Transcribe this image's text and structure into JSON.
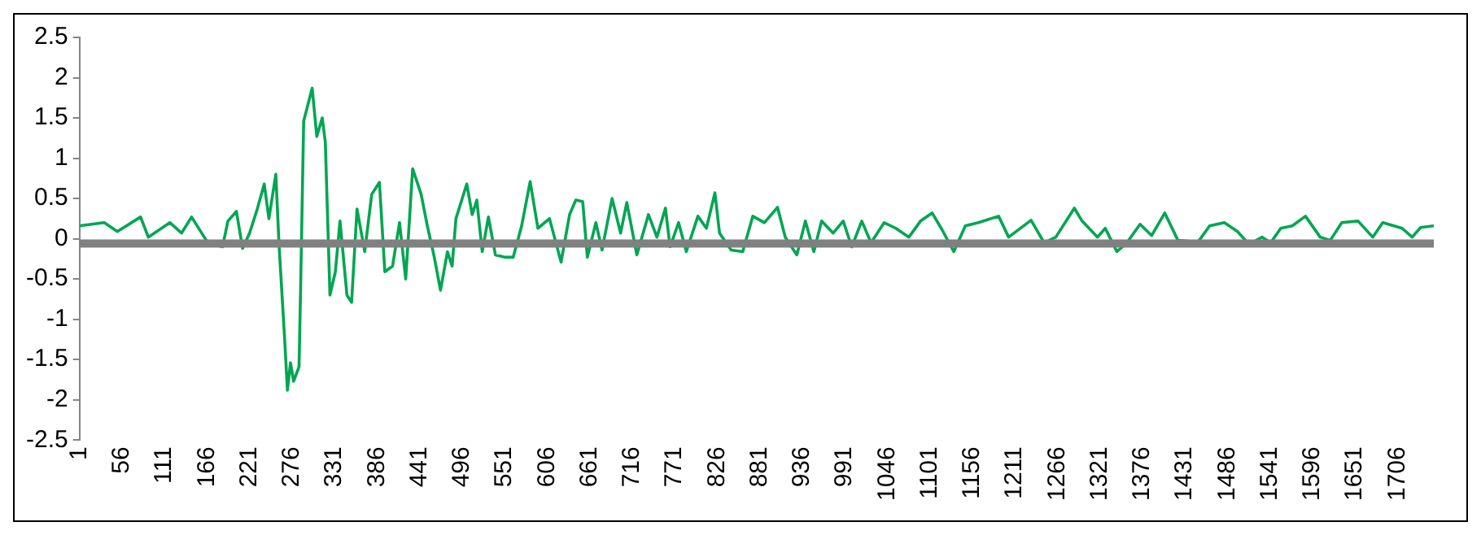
{
  "chart_data": {
    "type": "line",
    "grid": false,
    "legend": false,
    "marker": "none",
    "line_style": "solid",
    "x": [
      1,
      33,
      50,
      80,
      90,
      118,
      133,
      146,
      167,
      186,
      193,
      204,
      212,
      221,
      231,
      240,
      246,
      255,
      259,
      266,
      270,
      274,
      278,
      285,
      287,
      291,
      302,
      308,
      315,
      319,
      325,
      332,
      338,
      347,
      353,
      360,
      370,
      379,
      389,
      396,
      406,
      415,
      423,
      432,
      443,
      451,
      460,
      468,
      477,
      483,
      488,
      502,
      509,
      515,
      522,
      530,
      539,
      552,
      562,
      573,
      584,
      594,
      609,
      624,
      635,
      643,
      652,
      658,
      669,
      677,
      690,
      701,
      709,
      722,
      737,
      748,
      759,
      765,
      776,
      786,
      801,
      812,
      823,
      829,
      844,
      859,
      872,
      887,
      904,
      914,
      929,
      940,
      951,
      961,
      976,
      989,
      1000,
      1013,
      1025,
      1042,
      1057,
      1074,
      1089,
      1104,
      1117,
      1132,
      1147,
      1164,
      1190,
      1203,
      1232,
      1249,
      1264,
      1288,
      1298,
      1318,
      1328,
      1343,
      1356,
      1373,
      1388,
      1405,
      1422,
      1448,
      1463,
      1482,
      1499,
      1514,
      1531,
      1542,
      1555,
      1570,
      1587,
      1606,
      1619,
      1634,
      1655,
      1674,
      1687,
      1712,
      1725,
      1736,
      1753
    ],
    "series": [
      {
        "color": "#00a651",
        "values": [
          0.16,
          0.2,
          0.09,
          0.27,
          0.02,
          0.2,
          0.07,
          0.27,
          -0.05,
          -0.1,
          0.22,
          0.34,
          -0.12,
          0.07,
          0.37,
          0.68,
          0.25,
          0.8,
          -0.05,
          -1.18,
          -1.88,
          -1.54,
          -1.77,
          -1.59,
          -0.64,
          1.46,
          1.87,
          1.27,
          1.5,
          1.2,
          -0.7,
          -0.41,
          0.22,
          -0.7,
          -0.79,
          0.37,
          -0.16,
          0.55,
          0.7,
          -0.41,
          -0.34,
          0.2,
          -0.5,
          0.87,
          0.55,
          0.16,
          -0.23,
          -0.64,
          -0.16,
          -0.34,
          0.25,
          0.68,
          0.3,
          0.48,
          -0.16,
          0.27,
          -0.2,
          -0.23,
          -0.23,
          0.16,
          0.71,
          0.13,
          0.25,
          -0.29,
          0.3,
          0.48,
          0.46,
          -0.23,
          0.2,
          -0.14,
          0.5,
          0.07,
          0.45,
          -0.2,
          0.3,
          0.02,
          0.38,
          -0.1,
          0.2,
          -0.16,
          0.28,
          0.13,
          0.57,
          0.07,
          -0.14,
          -0.16,
          0.28,
          0.2,
          0.39,
          0.02,
          -0.2,
          0.22,
          -0.16,
          0.22,
          0.07,
          0.22,
          -0.1,
          0.22,
          -0.05,
          0.2,
          0.13,
          0.02,
          0.22,
          0.32,
          0.11,
          -0.16,
          0.16,
          0.2,
          0.28,
          0.02,
          0.23,
          -0.05,
          0.02,
          0.38,
          0.22,
          0.02,
          0.13,
          -0.16,
          -0.05,
          0.18,
          0.04,
          0.32,
          -0.02,
          -0.04,
          0.16,
          0.2,
          0.09,
          -0.07,
          0.02,
          -0.05,
          0.13,
          0.16,
          0.28,
          0.02,
          -0.02,
          0.2,
          0.22,
          0.02,
          0.2,
          0.13,
          0.02,
          0.14,
          0.16
        ]
      },
      {
        "color": "#808080",
        "x": [
          1,
          1753
        ],
        "values": [
          -0.06,
          -0.06
        ]
      }
    ],
    "xlim": [
      1,
      1753
    ],
    "xticks": [
      1,
      56,
      111,
      166,
      221,
      276,
      331,
      386,
      441,
      496,
      551,
      606,
      661,
      716,
      771,
      826,
      881,
      936,
      991,
      1046,
      1101,
      1156,
      1211,
      1266,
      1321,
      1376,
      1431,
      1486,
      1541,
      1596,
      1651,
      1706
    ],
    "ylim": [
      -2.5,
      2.5
    ],
    "yticks": [
      -2.5,
      -2,
      -1.5,
      -1,
      -0.5,
      0,
      0.5,
      1,
      1.5,
      2,
      2.5
    ]
  }
}
